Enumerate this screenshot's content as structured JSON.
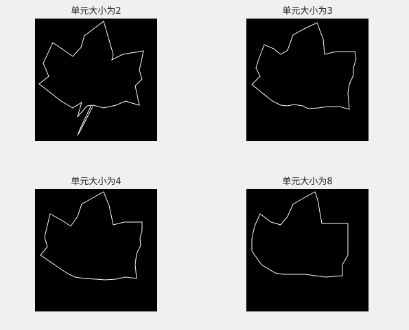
{
  "figure": {
    "background": "#f0f0f0",
    "panels": [
      {
        "title": "单元大小为2",
        "image_background": "#000000",
        "outline_color": "#ffffff"
      },
      {
        "title": "单元大小为3",
        "image_background": "#000000",
        "outline_color": "#ffffff"
      },
      {
        "title": "单元大小为4",
        "image_background": "#000000",
        "outline_color": "#ffffff"
      },
      {
        "title": "单元大小为8",
        "image_background": "#000000",
        "outline_color": "#ffffff"
      }
    ]
  }
}
